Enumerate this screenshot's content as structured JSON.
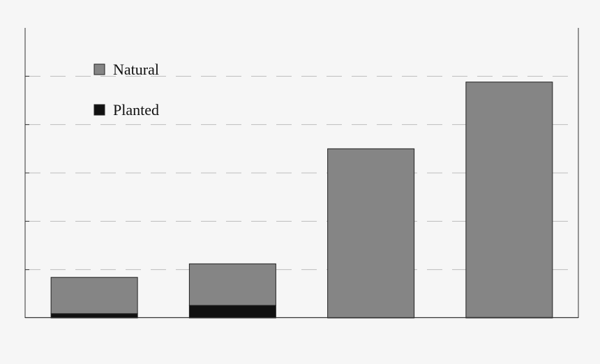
{
  "chart_data": {
    "type": "bar",
    "stacked": true,
    "categories": [
      "",
      "",
      "",
      ""
    ],
    "series": [
      {
        "name": "Planted",
        "color": "#111111",
        "values": [
          0.9,
          2.6,
          0,
          0.1
        ]
      },
      {
        "name": "Natural",
        "color": "#858585",
        "values": [
          7.5,
          8.6,
          35.0,
          48.7
        ]
      }
    ],
    "ylim": [
      0,
      60
    ],
    "grid": true,
    "legend": "top-left"
  }
}
